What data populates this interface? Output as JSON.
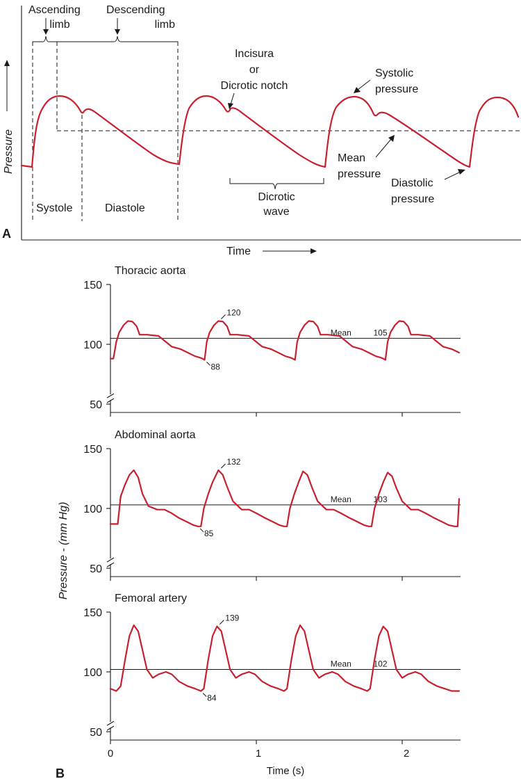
{
  "panel_a": {
    "letter": "A",
    "y_axis_label": "Pressure",
    "x_axis_label": "Time",
    "labels": {
      "ascending": [
        "Ascending",
        "limb"
      ],
      "descending": [
        "Descending",
        "limb"
      ],
      "incisura": [
        "Incisura",
        "or",
        "Dicrotic notch"
      ],
      "systolic": [
        "Systolic",
        "pressure"
      ],
      "mean": [
        "Mean",
        "pressure"
      ],
      "diastolic": [
        "Diastolic",
        "pressure"
      ],
      "dicrotic_wave": [
        "Dicrotic",
        "wave"
      ],
      "systole": "Systole",
      "diastole": "Diastole"
    }
  },
  "panel_b": {
    "letter": "B",
    "y_axis_label": "Pressure - (mm Hg)",
    "x_axis_label": "Time (s)",
    "x_ticks": [
      "0",
      "1",
      "2"
    ],
    "y_ticks": [
      "150",
      "100",
      "50"
    ],
    "mean_word": "Mean"
  },
  "chart_data": [
    {
      "type": "line",
      "title": "Thoracic aorta",
      "xlabel": "Time (s)",
      "ylabel": "Pressure - (mm Hg)",
      "xlim": [
        0,
        2.4
      ],
      "ylim": [
        50,
        150
      ],
      "y_ticks": [
        50,
        100,
        150
      ],
      "x_ticks": [
        0,
        1,
        2
      ],
      "mean": 105,
      "systolic": 120,
      "diastolic": 88,
      "annotations": [
        "120",
        "88",
        "105"
      ],
      "series": [
        {
          "values": [
            [
              0.0,
              88
            ],
            [
              0.02,
              88
            ],
            [
              0.04,
              102
            ],
            [
              0.06,
              110
            ],
            [
              0.09,
              116
            ],
            [
              0.12,
              119.5
            ],
            [
              0.15,
              119
            ],
            [
              0.18,
              115
            ],
            [
              0.2,
              108
            ],
            [
              0.25,
              108
            ],
            [
              0.33,
              107
            ],
            [
              0.36,
              104
            ],
            [
              0.42,
              98
            ],
            [
              0.48,
              96
            ],
            [
              0.53,
              93
            ],
            [
              0.58,
              90
            ],
            [
              0.61,
              89
            ],
            [
              0.63,
              88
            ],
            [
              0.645,
              87
            ],
            [
              0.66,
              102
            ],
            [
              0.68,
              110
            ],
            [
              0.71,
              116
            ],
            [
              0.74,
              119.5
            ],
            [
              0.77,
              119
            ],
            [
              0.8,
              115
            ],
            [
              0.82,
              108
            ],
            [
              0.87,
              108
            ],
            [
              0.95,
              107
            ],
            [
              0.98,
              104
            ],
            [
              1.04,
              98
            ],
            [
              1.1,
              96
            ],
            [
              1.15,
              93
            ],
            [
              1.2,
              90
            ],
            [
              1.23,
              89
            ],
            [
              1.25,
              88
            ],
            [
              1.265,
              87
            ],
            [
              1.28,
              102
            ],
            [
              1.3,
              110
            ],
            [
              1.33,
              116
            ],
            [
              1.36,
              119.5
            ],
            [
              1.39,
              119
            ],
            [
              1.42,
              115
            ],
            [
              1.44,
              108
            ],
            [
              1.49,
              108
            ],
            [
              1.57,
              107
            ],
            [
              1.6,
              104
            ],
            [
              1.66,
              98
            ],
            [
              1.72,
              96
            ],
            [
              1.77,
              93
            ],
            [
              1.82,
              90
            ],
            [
              1.85,
              89
            ],
            [
              1.87,
              88
            ],
            [
              1.885,
              87
            ],
            [
              1.9,
              102
            ],
            [
              1.92,
              110
            ],
            [
              1.95,
              116
            ],
            [
              1.98,
              119.5
            ],
            [
              2.01,
              119
            ],
            [
              2.04,
              115
            ],
            [
              2.06,
              108
            ],
            [
              2.11,
              108
            ],
            [
              2.19,
              107
            ],
            [
              2.22,
              104
            ],
            [
              2.28,
              98
            ],
            [
              2.34,
              96
            ],
            [
              2.39,
              93
            ]
          ]
        }
      ]
    },
    {
      "type": "line",
      "title": "Abdominal aorta",
      "xlabel": "Time (s)",
      "ylabel": "Pressure - (mm Hg)",
      "xlim": [
        0,
        2.4
      ],
      "ylim": [
        50,
        150
      ],
      "y_ticks": [
        50,
        100,
        150
      ],
      "x_ticks": [
        0,
        1,
        2
      ],
      "mean": 103,
      "systolic": 132,
      "diastolic": 85,
      "annotations": [
        "132",
        "85",
        "103"
      ],
      "series": [
        {
          "values": [
            [
              0.0,
              87
            ],
            [
              0.05,
              87
            ],
            [
              0.07,
              110
            ],
            [
              0.1,
              120
            ],
            [
              0.13,
              128
            ],
            [
              0.16,
              132
            ],
            [
              0.19,
              126
            ],
            [
              0.22,
              112
            ],
            [
              0.26,
              102
            ],
            [
              0.32,
              99
            ],
            [
              0.37,
              99
            ],
            [
              0.42,
              96
            ],
            [
              0.47,
              92
            ],
            [
              0.52,
              89
            ],
            [
              0.57,
              86
            ],
            [
              0.6,
              85
            ],
            [
              0.62,
              85
            ],
            [
              0.64,
              100
            ],
            [
              0.67,
              112
            ],
            [
              0.7,
              122
            ],
            [
              0.74,
              132
            ],
            [
              0.77,
              128
            ],
            [
              0.8,
              118
            ],
            [
              0.84,
              106
            ],
            [
              0.9,
              99
            ],
            [
              0.95,
              99
            ],
            [
              1.0,
              96
            ],
            [
              1.06,
              92
            ],
            [
              1.11,
              89
            ],
            [
              1.16,
              86
            ],
            [
              1.19,
              85
            ],
            [
              1.21,
              85
            ],
            [
              1.23,
              100
            ],
            [
              1.26,
              112
            ],
            [
              1.29,
              122
            ],
            [
              1.32,
              131
            ],
            [
              1.35,
              128
            ],
            [
              1.38,
              118
            ],
            [
              1.42,
              106
            ],
            [
              1.48,
              99
            ],
            [
              1.53,
              99
            ],
            [
              1.58,
              96
            ],
            [
              1.64,
              92
            ],
            [
              1.69,
              89
            ],
            [
              1.74,
              86
            ],
            [
              1.77,
              85
            ],
            [
              1.79,
              85
            ],
            [
              1.81,
              100
            ],
            [
              1.84,
              112
            ],
            [
              1.87,
              122
            ],
            [
              1.9,
              130
            ],
            [
              1.93,
              127
            ],
            [
              1.96,
              117
            ],
            [
              2.0,
              106
            ],
            [
              2.06,
              99
            ],
            [
              2.11,
              99
            ],
            [
              2.16,
              96
            ],
            [
              2.22,
              92
            ],
            [
              2.27,
              89
            ],
            [
              2.32,
              86
            ],
            [
              2.36,
              85
            ],
            [
              2.38,
              85
            ],
            [
              2.39,
              108
            ]
          ]
        }
      ]
    },
    {
      "type": "line",
      "title": "Femoral artery",
      "xlabel": "Time (s)",
      "ylabel": "Pressure - (mm Hg)",
      "xlim": [
        0,
        2.4
      ],
      "ylim": [
        50,
        150
      ],
      "y_ticks": [
        50,
        100,
        150
      ],
      "x_ticks": [
        0,
        1,
        2
      ],
      "mean": 102,
      "systolic": 139,
      "diastolic": 84,
      "annotations": [
        "139",
        "84",
        "102"
      ],
      "series": [
        {
          "values": [
            [
              0.0,
              86
            ],
            [
              0.04,
              84
            ],
            [
              0.07,
              88
            ],
            [
              0.1,
              110
            ],
            [
              0.13,
              130
            ],
            [
              0.16,
              139
            ],
            [
              0.19,
              134
            ],
            [
              0.22,
              118
            ],
            [
              0.25,
              102
            ],
            [
              0.29,
              95
            ],
            [
              0.33,
              98
            ],
            [
              0.38,
              100
            ],
            [
              0.42,
              98
            ],
            [
              0.47,
              92
            ],
            [
              0.53,
              88
            ],
            [
              0.58,
              86
            ],
            [
              0.62,
              84
            ],
            [
              0.64,
              86
            ],
            [
              0.67,
              110
            ],
            [
              0.7,
              130
            ],
            [
              0.73,
              138
            ],
            [
              0.76,
              134
            ],
            [
              0.79,
              118
            ],
            [
              0.82,
              102
            ],
            [
              0.86,
              95
            ],
            [
              0.9,
              98
            ],
            [
              0.95,
              100
            ],
            [
              0.99,
              98
            ],
            [
              1.04,
              92
            ],
            [
              1.1,
              88
            ],
            [
              1.15,
              86
            ],
            [
              1.19,
              84
            ],
            [
              1.21,
              86
            ],
            [
              1.24,
              110
            ],
            [
              1.27,
              130
            ],
            [
              1.3,
              139
            ],
            [
              1.33,
              134
            ],
            [
              1.36,
              118
            ],
            [
              1.39,
              102
            ],
            [
              1.43,
              95
            ],
            [
              1.47,
              98
            ],
            [
              1.52,
              100
            ],
            [
              1.56,
              98
            ],
            [
              1.61,
              92
            ],
            [
              1.67,
              88
            ],
            [
              1.72,
              86
            ],
            [
              1.76,
              84
            ],
            [
              1.78,
              86
            ],
            [
              1.81,
              110
            ],
            [
              1.84,
              130
            ],
            [
              1.87,
              138
            ],
            [
              1.9,
              134
            ],
            [
              1.93,
              118
            ],
            [
              1.96,
              102
            ],
            [
              2.0,
              95
            ],
            [
              2.04,
              98
            ],
            [
              2.09,
              100
            ],
            [
              2.13,
              98
            ],
            [
              2.18,
              92
            ],
            [
              2.24,
              88
            ],
            [
              2.29,
              86
            ],
            [
              2.34,
              84
            ],
            [
              2.39,
              84
            ]
          ]
        }
      ]
    }
  ]
}
